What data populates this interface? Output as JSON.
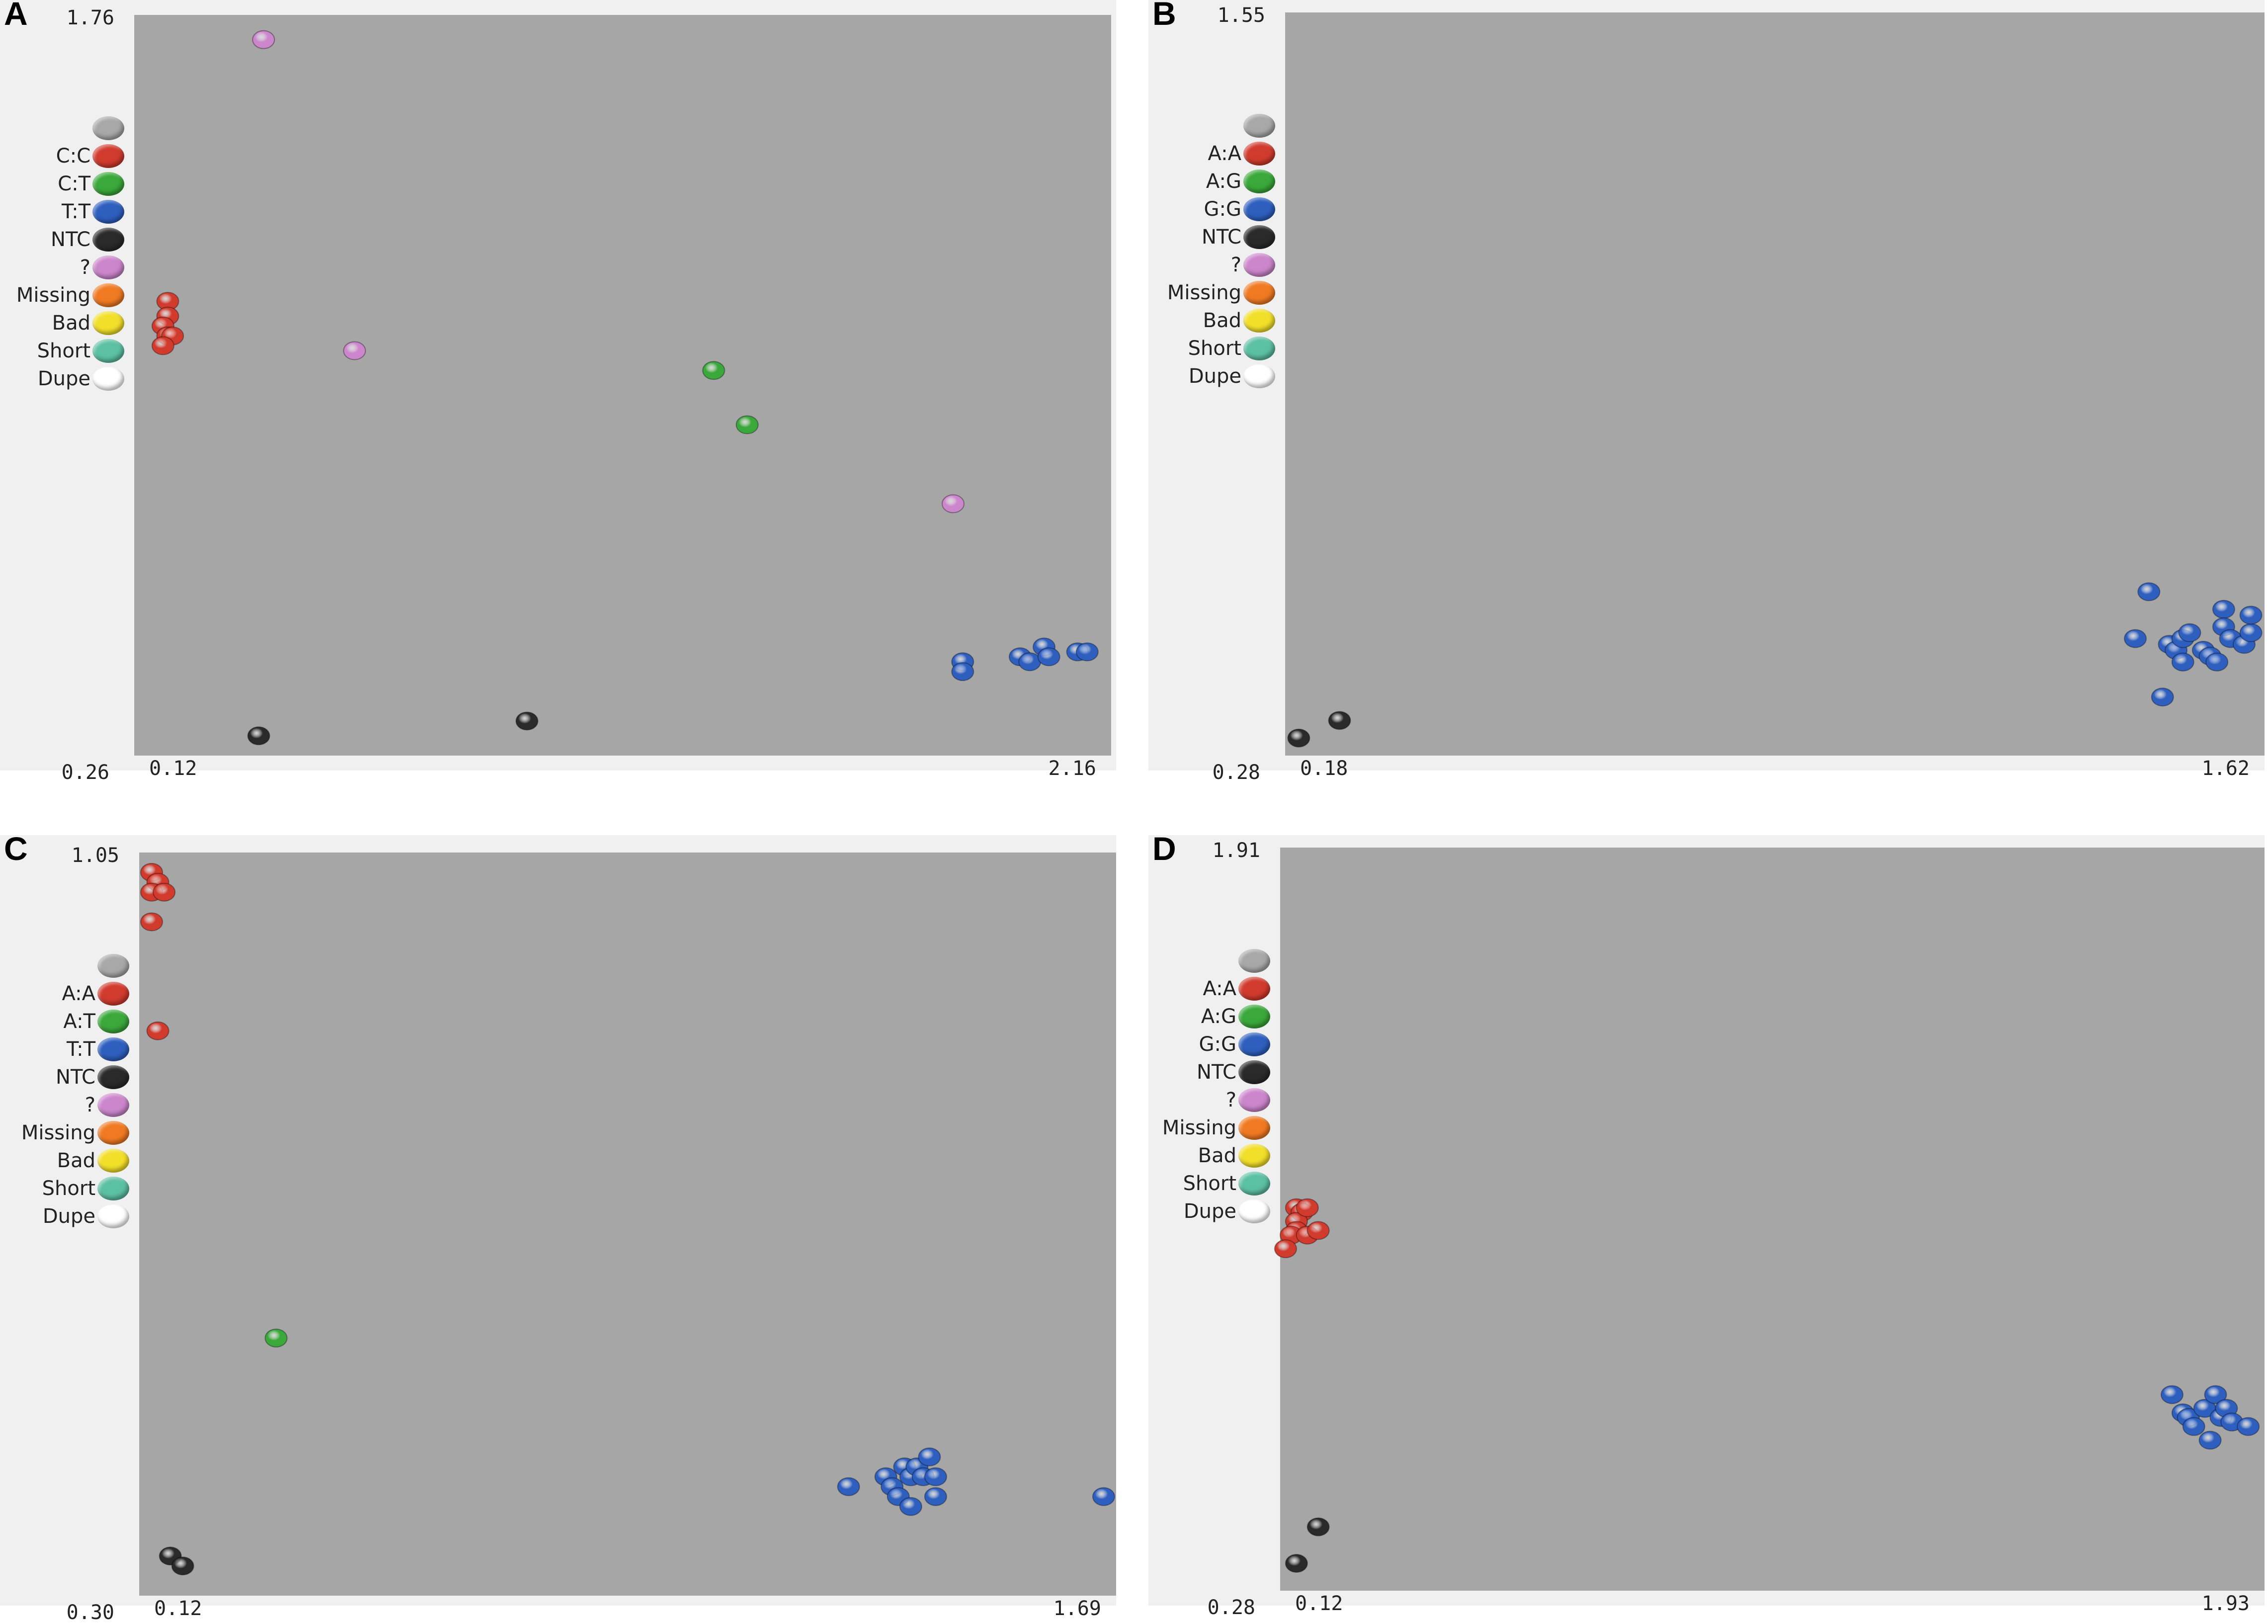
{
  "colors": {
    "gray": "#a8a8a8",
    "red": "#d13b2e",
    "green": "#3aa83a",
    "blue": "#2e5fbf",
    "black": "#2a2a2a",
    "pink": "#cc86cc",
    "orange": "#f07a22",
    "yellow": "#f2df2a",
    "teal": "#5cc0a3",
    "white": "#ffffff"
  },
  "chart_data": [
    {
      "type": "scatter",
      "panel": "A",
      "xlim": [
        0.12,
        2.16
      ],
      "ylim": [
        0.26,
        1.76
      ],
      "x_min_label": "0.12",
      "x_max_label": "2.16",
      "y_min_label": "0.26",
      "y_max_label": "1.76",
      "legend": [
        {
          "label": "",
          "color": "gray"
        },
        {
          "label": "C:C",
          "color": "red"
        },
        {
          "label": "C:T",
          "color": "green"
        },
        {
          "label": "T:T",
          "color": "blue"
        },
        {
          "label": "NTC",
          "color": "black"
        },
        {
          "label": "?",
          "color": "pink"
        },
        {
          "label": "Missing",
          "color": "orange"
        },
        {
          "label": "Bad",
          "color": "yellow"
        },
        {
          "label": "Short",
          "color": "teal"
        },
        {
          "label": "Dupe",
          "color": "white"
        }
      ],
      "series": [
        {
          "name": "C:C",
          "color": "red",
          "points": [
            [
              0.19,
              1.18
            ],
            [
              0.19,
              1.15
            ],
            [
              0.18,
              1.13
            ],
            [
              0.19,
              1.11
            ],
            [
              0.2,
              1.11
            ],
            [
              0.18,
              1.09
            ]
          ]
        },
        {
          "name": "C:T",
          "color": "green",
          "points": [
            [
              1.33,
              1.04
            ],
            [
              1.4,
              0.93
            ]
          ]
        },
        {
          "name": "T:T",
          "color": "blue",
          "points": [
            [
              1.85,
              0.45
            ],
            [
              1.85,
              0.43
            ],
            [
              1.97,
              0.46
            ],
            [
              1.99,
              0.45
            ],
            [
              2.02,
              0.48
            ],
            [
              2.03,
              0.46
            ],
            [
              2.09,
              0.47
            ],
            [
              2.11,
              0.47
            ]
          ]
        },
        {
          "name": "NTC",
          "color": "black",
          "points": [
            [
              0.38,
              0.3
            ],
            [
              0.94,
              0.33
            ]
          ]
        },
        {
          "name": "?",
          "color": "pink",
          "points": [
            [
              0.39,
              1.71
            ],
            [
              0.58,
              1.08
            ],
            [
              1.83,
              0.77
            ]
          ]
        }
      ]
    },
    {
      "type": "scatter",
      "panel": "B",
      "xlim": [
        0.18,
        1.62
      ],
      "ylim": [
        0.28,
        1.55
      ],
      "x_min_label": "0.18",
      "x_max_label": "1.62",
      "y_min_label": "0.28",
      "y_max_label": "1.55",
      "legend": [
        {
          "label": "",
          "color": "gray"
        },
        {
          "label": "A:A",
          "color": "red"
        },
        {
          "label": "A:G",
          "color": "green"
        },
        {
          "label": "G:G",
          "color": "blue"
        },
        {
          "label": "NTC",
          "color": "black"
        },
        {
          "label": "?",
          "color": "pink"
        },
        {
          "label": "Missing",
          "color": "orange"
        },
        {
          "label": "Bad",
          "color": "yellow"
        },
        {
          "label": "Short",
          "color": "teal"
        },
        {
          "label": "Dupe",
          "color": "white"
        }
      ],
      "series": [
        {
          "name": "G:G",
          "color": "blue",
          "points": [
            [
              1.45,
              0.56
            ],
            [
              1.43,
              0.48
            ],
            [
              1.47,
              0.38
            ],
            [
              1.48,
              0.47
            ],
            [
              1.49,
              0.46
            ],
            [
              1.5,
              0.48
            ],
            [
              1.5,
              0.44
            ],
            [
              1.51,
              0.49
            ],
            [
              1.53,
              0.46
            ],
            [
              1.54,
              0.45
            ],
            [
              1.55,
              0.44
            ],
            [
              1.56,
              0.53
            ],
            [
              1.56,
              0.5
            ],
            [
              1.57,
              0.48
            ],
            [
              1.59,
              0.47
            ],
            [
              1.6,
              0.49
            ],
            [
              1.6,
              0.52
            ]
          ]
        },
        {
          "name": "NTC",
          "color": "black",
          "points": [
            [
              0.2,
              0.31
            ],
            [
              0.26,
              0.34
            ]
          ]
        }
      ]
    },
    {
      "type": "scatter",
      "panel": "C",
      "xlim": [
        0.12,
        1.69
      ],
      "ylim": [
        0.3,
        1.05
      ],
      "x_min_label": "0.12",
      "x_max_label": "1.69",
      "y_min_label": "0.30",
      "y_max_label": "1.05",
      "legend": [
        {
          "label": "",
          "color": "gray"
        },
        {
          "label": "A:A",
          "color": "red"
        },
        {
          "label": "A:T",
          "color": "green"
        },
        {
          "label": "T:T",
          "color": "blue"
        },
        {
          "label": "NTC",
          "color": "black"
        },
        {
          "label": "?",
          "color": "pink"
        },
        {
          "label": "Missing",
          "color": "orange"
        },
        {
          "label": "Bad",
          "color": "yellow"
        },
        {
          "label": "Short",
          "color": "teal"
        },
        {
          "label": "Dupe",
          "color": "white"
        }
      ],
      "series": [
        {
          "name": "A:A",
          "color": "red",
          "points": [
            [
              0.14,
              1.03
            ],
            [
              0.15,
              1.02
            ],
            [
              0.14,
              1.01
            ],
            [
              0.16,
              1.01
            ],
            [
              0.14,
              0.98
            ],
            [
              0.15,
              0.87
            ]
          ]
        },
        {
          "name": "A:T",
          "color": "green",
          "points": [
            [
              0.34,
              0.56
            ]
          ]
        },
        {
          "name": "T:T",
          "color": "blue",
          "points": [
            [
              1.26,
              0.41
            ],
            [
              1.32,
              0.42
            ],
            [
              1.33,
              0.41
            ],
            [
              1.34,
              0.4
            ],
            [
              1.35,
              0.43
            ],
            [
              1.36,
              0.42
            ],
            [
              1.36,
              0.39
            ],
            [
              1.37,
              0.43
            ],
            [
              1.38,
              0.42
            ],
            [
              1.39,
              0.44
            ],
            [
              1.4,
              0.42
            ],
            [
              1.4,
              0.4
            ],
            [
              1.67,
              0.4
            ]
          ]
        },
        {
          "name": "NTC",
          "color": "black",
          "points": [
            [
              0.17,
              0.34
            ],
            [
              0.19,
              0.33
            ]
          ]
        }
      ]
    },
    {
      "type": "scatter",
      "panel": "D",
      "xlim": [
        0.12,
        1.93
      ],
      "ylim": [
        0.28,
        1.91
      ],
      "x_min_label": "0.12",
      "x_max_label": "1.93",
      "y_min_label": "0.28",
      "y_max_label": "1.91",
      "legend": [
        {
          "label": "",
          "color": "gray"
        },
        {
          "label": "A:A",
          "color": "red"
        },
        {
          "label": "A:G",
          "color": "green"
        },
        {
          "label": "G:G",
          "color": "blue"
        },
        {
          "label": "NTC",
          "color": "black"
        },
        {
          "label": "?",
          "color": "pink"
        },
        {
          "label": "Missing",
          "color": "orange"
        },
        {
          "label": "Bad",
          "color": "yellow"
        },
        {
          "label": "Short",
          "color": "teal"
        },
        {
          "label": "Dupe",
          "color": "white"
        }
      ],
      "series": [
        {
          "name": "A:A",
          "color": "red",
          "points": [
            [
              0.15,
              1.12
            ],
            [
              0.16,
              1.11
            ],
            [
              0.15,
              1.09
            ],
            [
              0.15,
              1.07
            ],
            [
              0.14,
              1.06
            ],
            [
              0.17,
              1.12
            ],
            [
              0.17,
              1.06
            ],
            [
              0.19,
              1.07
            ],
            [
              0.13,
              1.03
            ]
          ]
        },
        {
          "name": "G:G",
          "color": "blue",
          "points": [
            [
              1.76,
              0.71
            ],
            [
              1.78,
              0.67
            ],
            [
              1.79,
              0.66
            ],
            [
              1.8,
              0.64
            ],
            [
              1.82,
              0.68
            ],
            [
              1.83,
              0.61
            ],
            [
              1.84,
              0.71
            ],
            [
              1.85,
              0.66
            ],
            [
              1.86,
              0.68
            ],
            [
              1.87,
              0.65
            ],
            [
              1.9,
              0.64
            ]
          ]
        },
        {
          "name": "NTC",
          "color": "black",
          "points": [
            [
              0.15,
              0.34
            ],
            [
              0.19,
              0.42
            ]
          ]
        }
      ]
    }
  ]
}
